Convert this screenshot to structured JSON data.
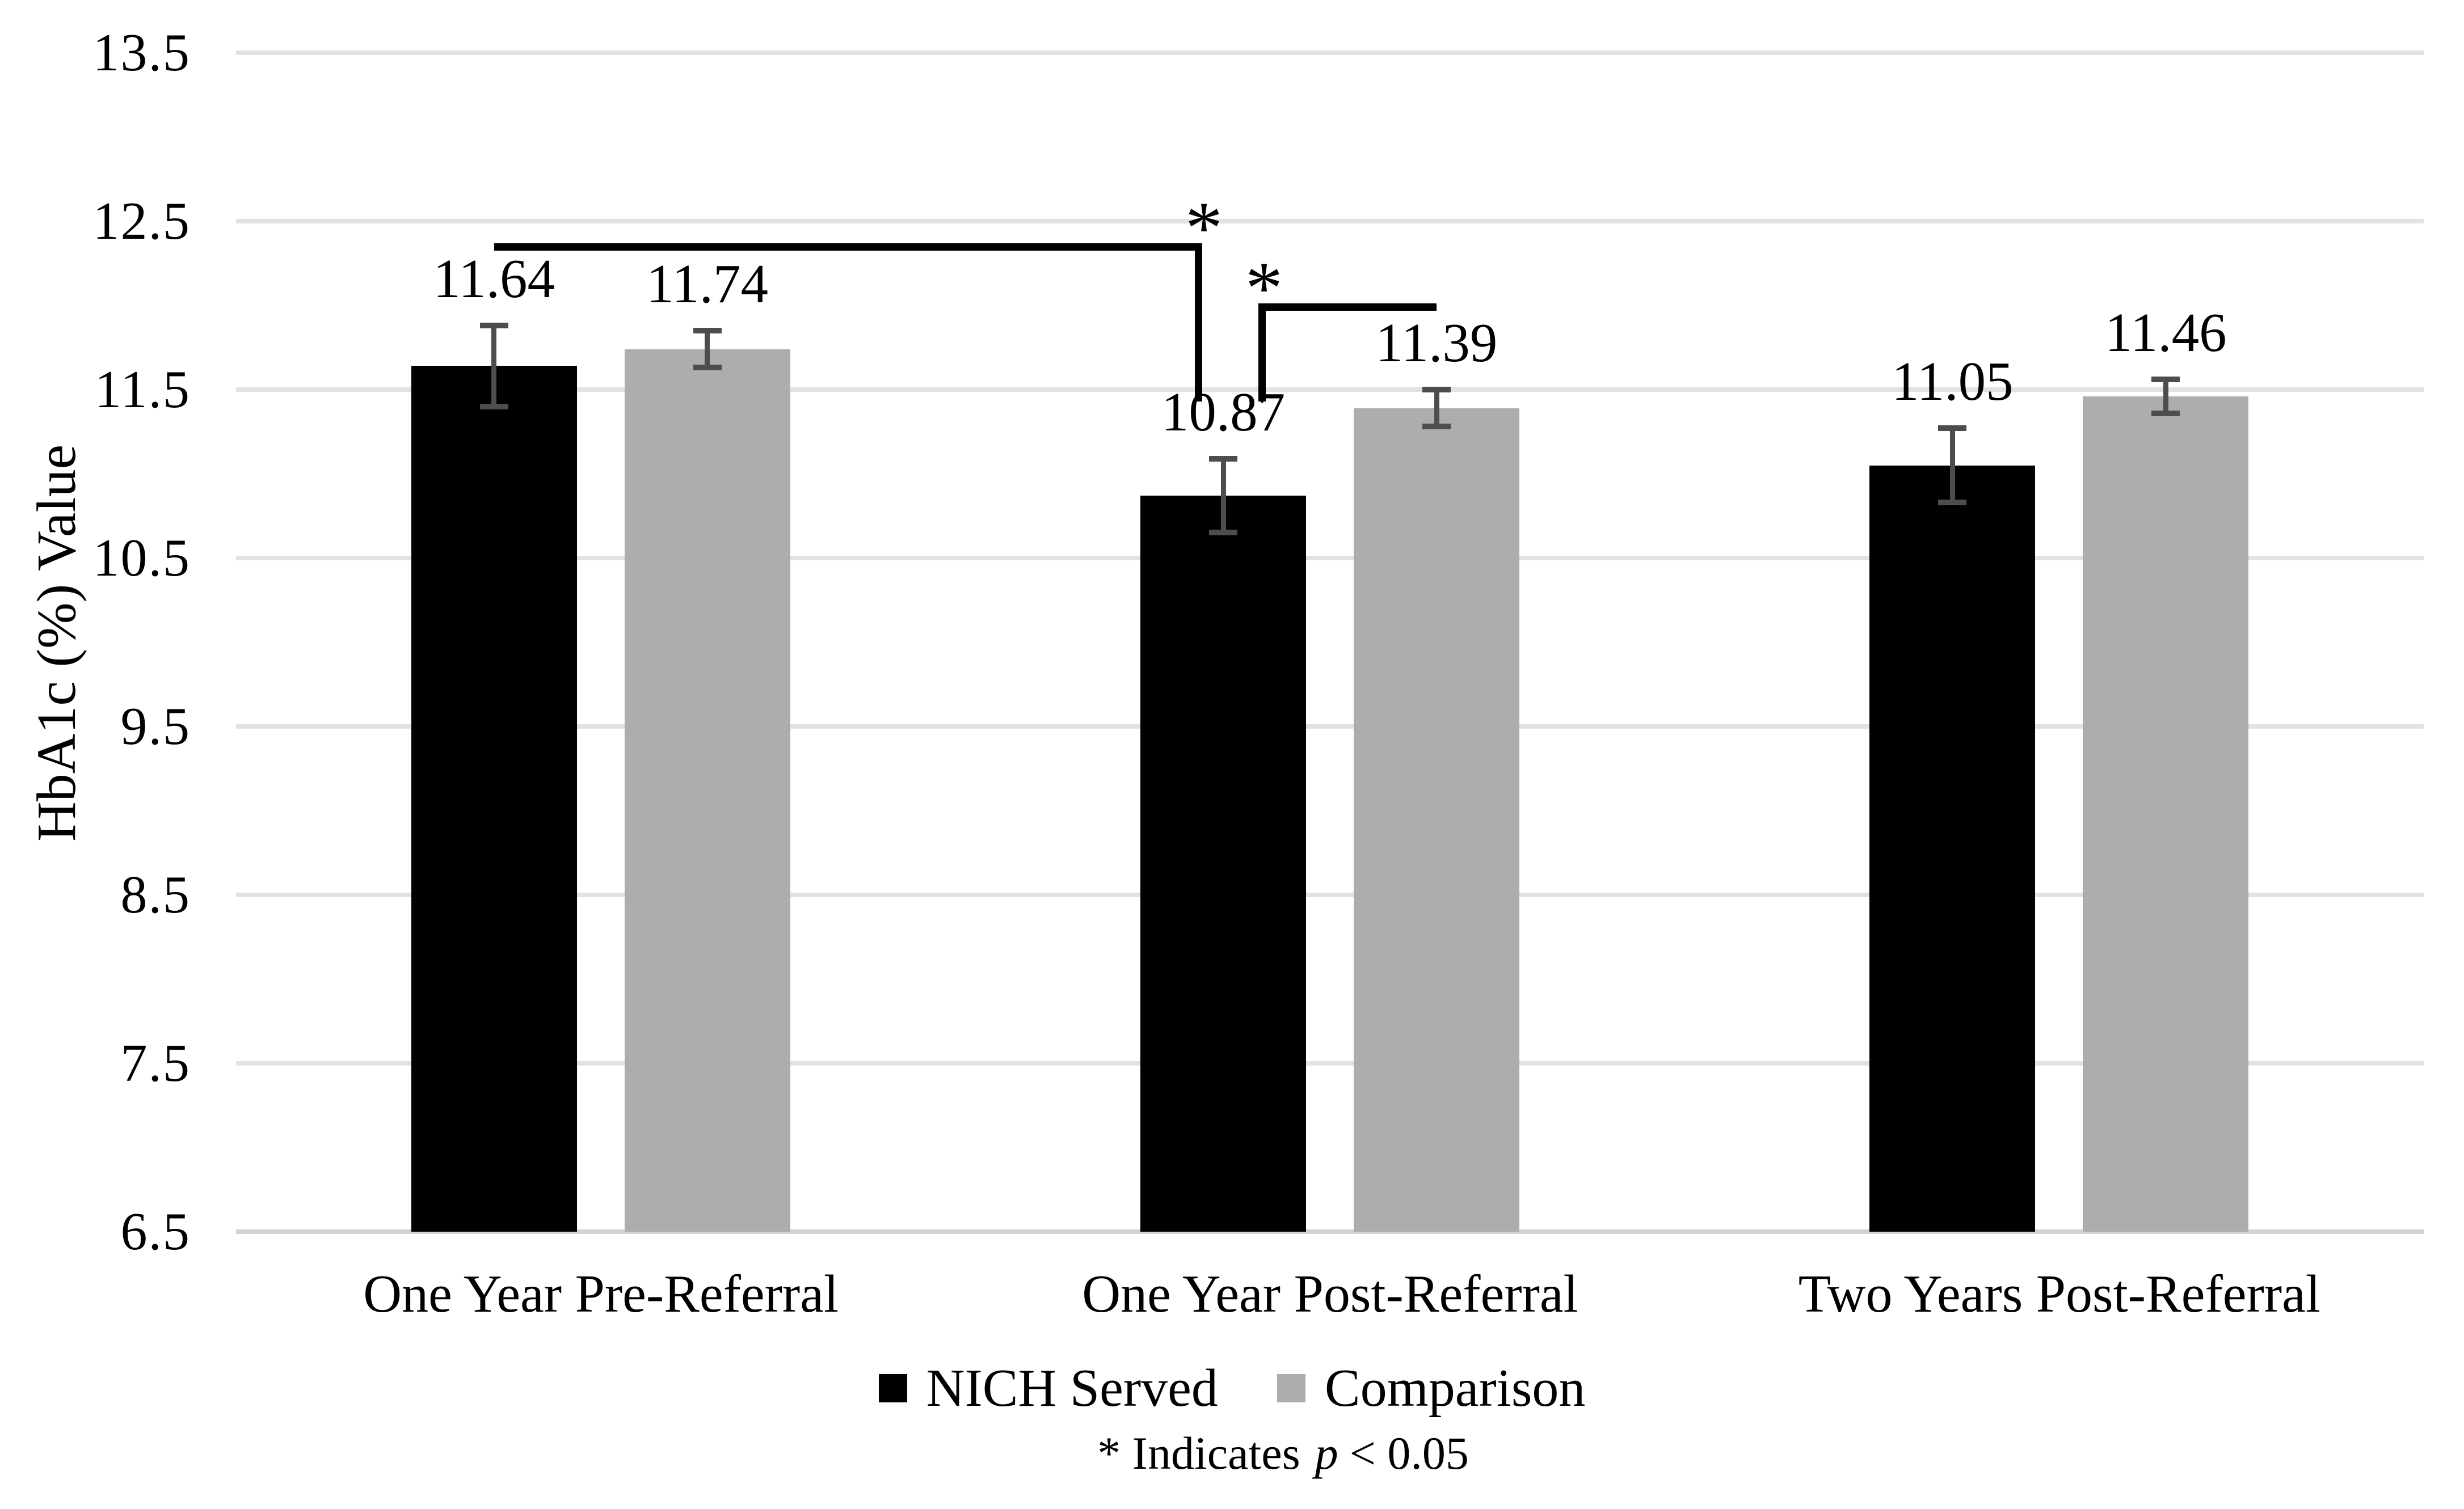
{
  "chart_data": {
    "type": "bar",
    "title": "",
    "xlabel": "",
    "ylabel": "HbA1c (%) Value",
    "ylim": [
      6.5,
      13.5
    ],
    "yticks": [
      13.5,
      12.5,
      11.5,
      10.5,
      9.5,
      8.5,
      7.5,
      6.5
    ],
    "grid": "horizontal",
    "legend_position": "bottom",
    "categories": [
      "One Year Pre-Referral",
      "One Year Post-Referral",
      "Two Years Post-Referral"
    ],
    "series": [
      {
        "name": "NICH Served",
        "color": "#000000",
        "values": [
          11.64,
          10.87,
          11.05
        ],
        "errors": [
          0.24,
          0.22,
          0.22
        ]
      },
      {
        "name": "Comparison",
        "color": "#ADADAD",
        "values": [
          11.74,
          11.39,
          11.46
        ],
        "errors": [
          0.11,
          0.11,
          0.1
        ]
      }
    ],
    "value_labels": [
      "11.64",
      "10.87",
      "11.05",
      "11.74",
      "11.39",
      "11.46"
    ],
    "significance_brackets": [
      {
        "label": "*",
        "from": {
          "series": "NICH Served",
          "category": "One Year Pre-Referral"
        },
        "to": {
          "series": "NICH Served",
          "category": "One Year Post-Referral"
        }
      },
      {
        "label": "*",
        "from": {
          "series": "NICH Served",
          "category": "One Year Post-Referral"
        },
        "to": {
          "series": "Comparison",
          "category": "One Year Post-Referral"
        }
      }
    ],
    "footnote": "* Indicates p < 0.05"
  },
  "legend": {
    "items": [
      {
        "label": "NICH Served",
        "color": "#000000"
      },
      {
        "label": "Comparison",
        "color": "#ADADAD"
      }
    ]
  },
  "footnote": {
    "lead": "* Indicates",
    "p_var": "p",
    "rest": "< 0.05"
  },
  "colors": {
    "bar_black": "#000000",
    "bar_gray": "#ADADAD",
    "error_bar": "#4D4D4D",
    "gridline": "#E2E2E2",
    "axis_line": "#D2D2D2",
    "bracket": "#000000",
    "text": "#000000"
  }
}
